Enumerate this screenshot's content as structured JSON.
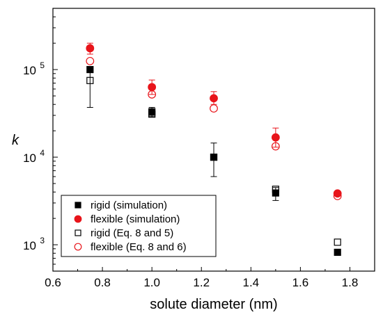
{
  "chart_data": {
    "type": "scatter",
    "xlabel": "solute diameter (nm)",
    "ylabel": "k",
    "xlim": [
      0.6,
      1.9
    ],
    "ylim": [
      500,
      500000
    ],
    "yscale": "log",
    "x_ticks": [
      "0.6",
      "0.8",
      "1.0",
      "1.2",
      "1.4",
      "1.6",
      "1.8"
    ],
    "y_ticks": [
      {
        "value": 1000,
        "base": "10",
        "exp": "3"
      },
      {
        "value": 10000,
        "base": "10",
        "exp": "4"
      },
      {
        "value": 100000,
        "base": "10",
        "exp": "5"
      }
    ],
    "grid": false,
    "legend_position": "bottom-left",
    "series": [
      {
        "name": "rigid (simulation)",
        "marker": "square",
        "filled": true,
        "color": "#000000",
        "x": [
          0.75,
          1.0,
          1.25,
          1.5,
          1.75
        ],
        "y": [
          100000,
          33000,
          10000,
          3900,
          820
        ],
        "err_low": [
          100000,
          30000,
          10000,
          3200,
          760
        ],
        "err_high": [
          100000,
          37000,
          10000,
          4500,
          880
        ]
      },
      {
        "name": "flexible (simulation)",
        "marker": "circle",
        "filled": true,
        "color": "#e8141a",
        "x": [
          0.75,
          1.0,
          1.25,
          1.5,
          1.75
        ],
        "y": [
          175000,
          63000,
          47000,
          16800,
          3850
        ],
        "err_low": [
          150000,
          52000,
          40000,
          13000,
          3650
        ],
        "err_high": [
          200000,
          76000,
          56000,
          21500,
          4050
        ]
      },
      {
        "name": "rigid (Eq. 8 and 5)",
        "marker": "square",
        "filled": false,
        "color": "#000000",
        "x": [
          0.75,
          1.0,
          1.25,
          1.5,
          1.75
        ],
        "y": [
          75000,
          31000,
          10000,
          4300,
          1070
        ],
        "err_low": [
          37000,
          29000,
          6000,
          4300,
          1070
        ],
        "err_high": [
          100000,
          33000,
          14500,
          4300,
          1070
        ]
      },
      {
        "name": "flexible (Eq. 8 and 6)",
        "marker": "circle",
        "filled": false,
        "color": "#e8141a",
        "x": [
          0.75,
          1.0,
          1.25,
          1.5,
          1.75
        ],
        "y": [
          125000,
          52000,
          36000,
          13300,
          3600
        ],
        "err_low": [
          125000,
          52000,
          36000,
          13300,
          3600
        ],
        "err_high": [
          125000,
          52000,
          36000,
          13300,
          3600
        ]
      }
    ]
  }
}
